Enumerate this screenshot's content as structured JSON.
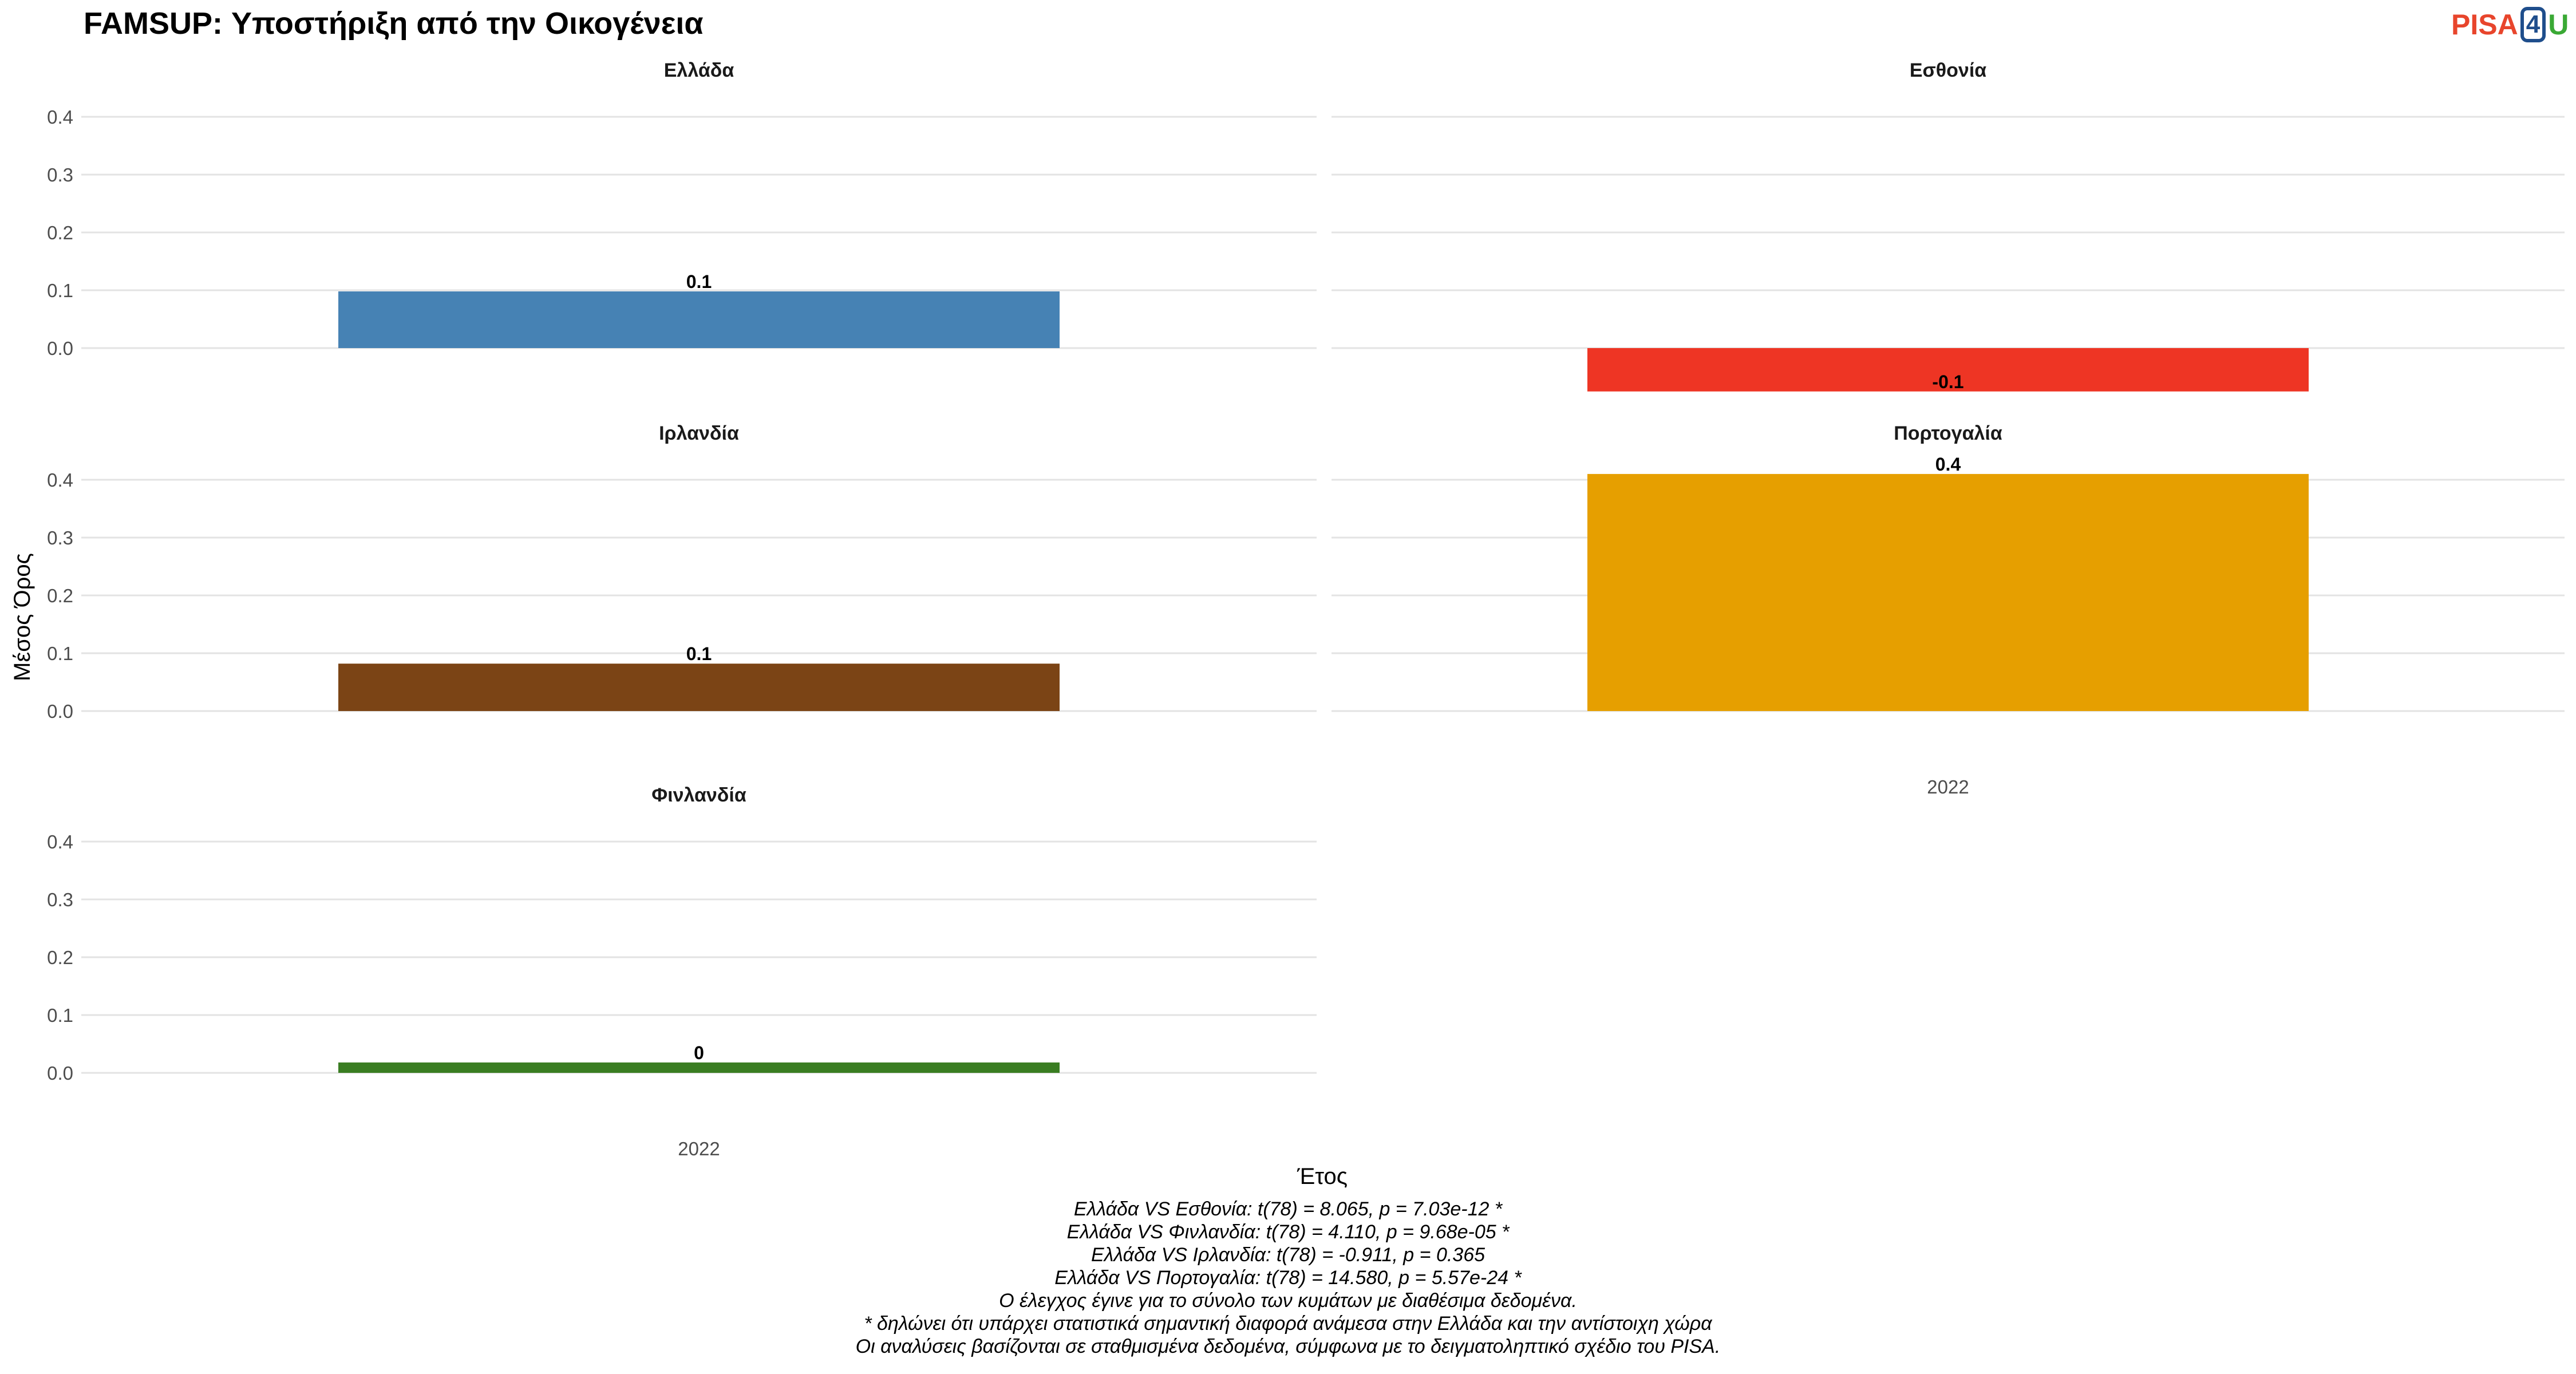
{
  "title": "FAMSUP: Υποστήριξη από την Οικογένεια",
  "logo": {
    "part1": "PISA",
    "part2": "4",
    "part3": "U"
  },
  "chart_data": {
    "type": "bar",
    "xlabel": "Έτος",
    "ylabel": "Μέσος Όρος",
    "ylim": [
      -0.075,
      0.44
    ],
    "yticks": [
      "0.0",
      "0.1",
      "0.2",
      "0.3",
      "0.4"
    ],
    "ytick_values": [
      0,
      0.1,
      0.2,
      0.3,
      0.4
    ],
    "categories": [
      "2022"
    ],
    "grid": true,
    "panels": [
      {
        "name": "Ελλάδα",
        "year": "2022",
        "value": 0.098,
        "label": "0.1",
        "color": "#4682b4"
      },
      {
        "name": "Εσθονία",
        "year": "2022",
        "value": -0.075,
        "label": "-0.1",
        "color": "#ee3524"
      },
      {
        "name": "Ιρλανδία",
        "year": "2022",
        "value": 0.082,
        "label": "0.1",
        "color": "#7b4415"
      },
      {
        "name": "Πορτογαλία",
        "year": "2022",
        "value": 0.41,
        "label": "0.4",
        "color": "#e69f00"
      },
      {
        "name": "Φινλανδία",
        "year": "2022",
        "value": 0.018,
        "label": "0",
        "color": "#3a7d22"
      }
    ]
  },
  "notes": [
    "Ελλάδα VS Εσθονία: t(78) = 8.065, p = 7.03e-12 *",
    "Ελλάδα VS Φινλανδία: t(78) = 4.110, p = 9.68e-05 *",
    "Ελλάδα VS Ιρλανδία: t(78) = -0.911, p = 0.365",
    "Ελλάδα VS Πορτογαλία: t(78) = 14.580, p = 5.57e-24 *",
    "Ο έλεγχος έγινε για το σύνολο των κυμάτων με διαθέσιμα δεδομένα.",
    "* δηλώνει ότι υπάρχει στατιστικά σημαντική διαφορά ανάμεσα στην Ελλάδα και την αντίστοιχη χώρα",
    "Οι αναλύσεις βασίζονται σε σταθμισμένα δεδομένα, σύμφωνα με το δειγματοληπτικό σχέδιο του PISA."
  ]
}
